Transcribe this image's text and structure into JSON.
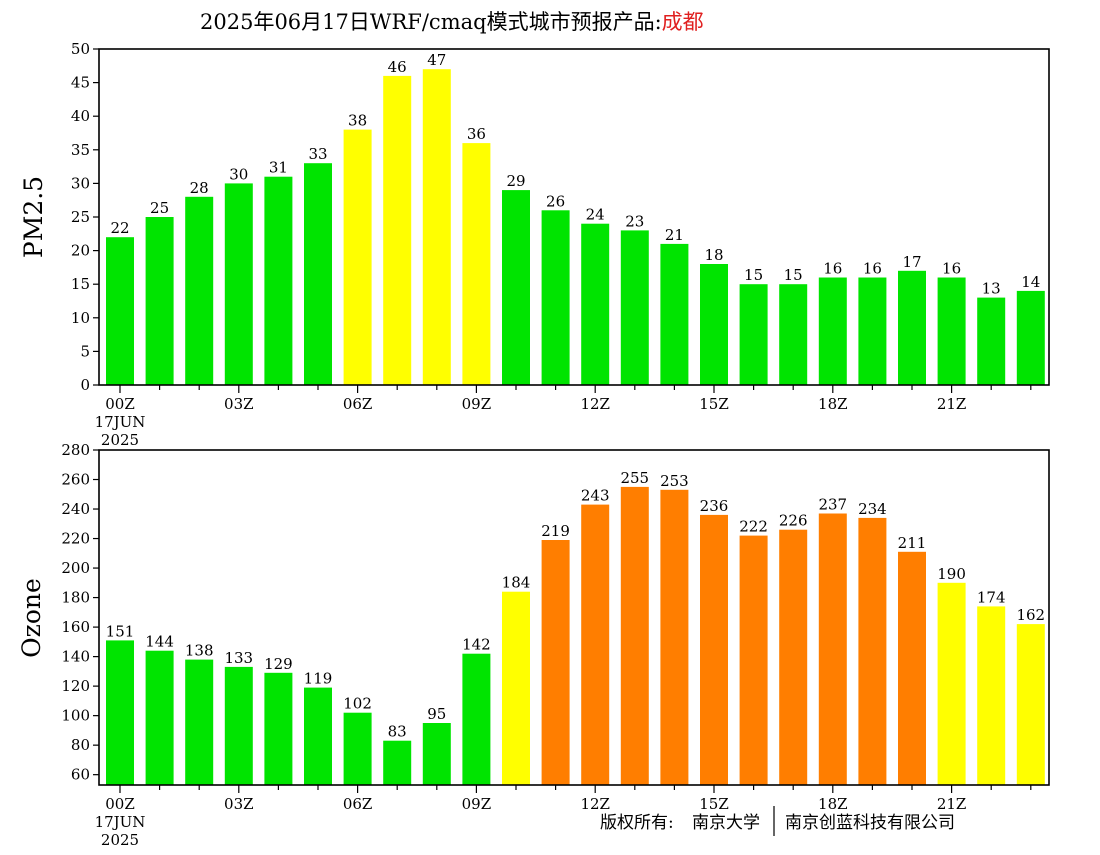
{
  "title": {
    "prefix": "2025年06月17日WRF/cmaq模式城市预报产品:",
    "city": "成都"
  },
  "footer": {
    "copyright_label": "版权所有:",
    "org1": "南京大学",
    "org2": "南京创蓝科技有限公司"
  },
  "colors": {
    "green": "#00e400",
    "yellow": "#ffff00",
    "orange": "#ff7e00",
    "title_city": "#e02020"
  },
  "time_labels": [
    {
      "hour": 0,
      "lines": [
        "00Z",
        "17JUN",
        "2025"
      ]
    },
    {
      "hour": 3,
      "lines": [
        "03Z"
      ]
    },
    {
      "hour": 6,
      "lines": [
        "06Z"
      ]
    },
    {
      "hour": 9,
      "lines": [
        "09Z"
      ]
    },
    {
      "hour": 12,
      "lines": [
        "12Z"
      ]
    },
    {
      "hour": 15,
      "lines": [
        "15Z"
      ]
    },
    {
      "hour": 18,
      "lines": [
        "18Z"
      ]
    },
    {
      "hour": 21,
      "lines": [
        "21Z"
      ]
    }
  ],
  "chart_data": [
    {
      "type": "bar",
      "ylabel": "PM2.5",
      "x": [
        0,
        1,
        2,
        3,
        4,
        5,
        6,
        7,
        8,
        9,
        10,
        11,
        12,
        13,
        14,
        15,
        16,
        17,
        18,
        19,
        20,
        21,
        22,
        23
      ],
      "values": [
        22,
        25,
        28,
        30,
        31,
        33,
        38,
        46,
        47,
        36,
        29,
        26,
        24,
        23,
        21,
        18,
        15,
        15,
        16,
        16,
        17,
        16,
        13,
        14
      ],
      "bar_colors": [
        "green",
        "green",
        "green",
        "green",
        "green",
        "green",
        "yellow",
        "yellow",
        "yellow",
        "yellow",
        "green",
        "green",
        "green",
        "green",
        "green",
        "green",
        "green",
        "green",
        "green",
        "green",
        "green",
        "green",
        "green",
        "green"
      ],
      "ylim": [
        0,
        50
      ],
      "yticks": [
        0,
        5,
        10,
        15,
        20,
        25,
        30,
        35,
        40,
        45,
        50
      ]
    },
    {
      "type": "bar",
      "ylabel": "Ozone",
      "x": [
        0,
        1,
        2,
        3,
        4,
        5,
        6,
        7,
        8,
        9,
        10,
        11,
        12,
        13,
        14,
        15,
        16,
        17,
        18,
        19,
        20,
        21,
        22,
        23
      ],
      "values": [
        151,
        144,
        138,
        133,
        129,
        119,
        102,
        83,
        95,
        142,
        184,
        219,
        243,
        255,
        253,
        236,
        222,
        226,
        237,
        234,
        211,
        190,
        174,
        162
      ],
      "bar_colors": [
        "green",
        "green",
        "green",
        "green",
        "green",
        "green",
        "green",
        "green",
        "green",
        "green",
        "yellow",
        "orange",
        "orange",
        "orange",
        "orange",
        "orange",
        "orange",
        "orange",
        "orange",
        "orange",
        "orange",
        "yellow",
        "yellow",
        "yellow"
      ],
      "ylim": [
        53,
        280
      ],
      "yticks": [
        60,
        80,
        100,
        120,
        140,
        160,
        180,
        200,
        220,
        240,
        260,
        280
      ]
    }
  ]
}
